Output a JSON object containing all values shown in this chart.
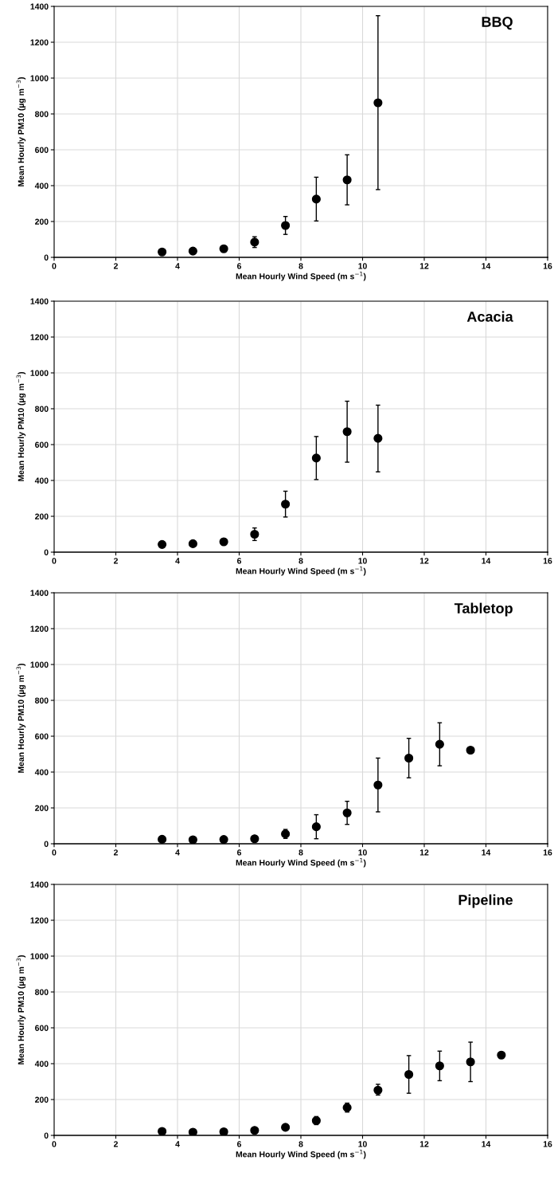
{
  "chart_data": [
    {
      "type": "scatter",
      "title": "BBQ",
      "xlabel": "Mean Hourly Wind Speed (m s$^{−1}$)",
      "ylabel": "Mean Hourly PM10 (µg m$^{−3}$)",
      "xlim": [
        0,
        16
      ],
      "xticks": [
        0,
        2,
        4,
        6,
        8,
        10,
        12,
        14,
        16
      ],
      "ylim": [
        0,
        1400
      ],
      "yticks": [
        0,
        200,
        400,
        600,
        800,
        1000,
        1200,
        1400
      ],
      "grid": true,
      "marker": "circle",
      "series": [
        {
          "color": "#000000",
          "x": [
            3.5,
            4.5,
            5.5,
            6.5,
            7.5,
            8.5,
            9.5,
            10.5
          ],
          "values": [
            30,
            35,
            48,
            85,
            178,
            325,
            432,
            862
          ],
          "errors": [
            null,
            null,
            null,
            [
              55,
              115
            ],
            [
              128,
              228
            ],
            [
              203,
              447
            ],
            [
              293,
              572
            ],
            [
              378,
              1348
            ]
          ]
        }
      ]
    },
    {
      "type": "scatter",
      "title": "Acacia",
      "xlabel": "Mean Hourly Wind Speed (m s$^{−1}$)",
      "ylabel": "Mean Hourly PM10 (µg m$^{−3}$)",
      "xlim": [
        0,
        16
      ],
      "xticks": [
        0,
        2,
        4,
        6,
        8,
        10,
        12,
        14,
        16
      ],
      "ylim": [
        0,
        1400
      ],
      "yticks": [
        0,
        200,
        400,
        600,
        800,
        1000,
        1200,
        1400
      ],
      "grid": true,
      "marker": "circle",
      "series": [
        {
          "color": "#000000",
          "x": [
            3.5,
            4.5,
            5.5,
            6.5,
            7.5,
            8.5,
            9.5,
            10.5
          ],
          "values": [
            43,
            47,
            58,
            100,
            268,
            525,
            672,
            635
          ],
          "errors": [
            null,
            null,
            null,
            [
              65,
              135
            ],
            [
              196,
              340
            ],
            [
              405,
              645
            ],
            [
              502,
              842
            ],
            [
              448,
              820
            ]
          ]
        }
      ]
    },
    {
      "type": "scatter",
      "title": "Tabletop",
      "xlabel": "Mean Hourly Wind Speed (m s$^{−1}$)",
      "ylabel": "Mean Hourly PM10 (µg m$^{−3}$)",
      "xlim": [
        0,
        16
      ],
      "xticks": [
        0,
        2,
        4,
        6,
        8,
        10,
        12,
        14,
        16
      ],
      "ylim": [
        0,
        1400
      ],
      "yticks": [
        0,
        200,
        400,
        600,
        800,
        1000,
        1200,
        1400
      ],
      "grid": true,
      "marker": "circle",
      "series": [
        {
          "color": "#000000",
          "x": [
            3.5,
            4.5,
            5.5,
            6.5,
            7.5,
            8.5,
            9.5,
            10.5,
            11.5,
            12.5,
            13.5
          ],
          "values": [
            25,
            22,
            24,
            28,
            55,
            95,
            172,
            328,
            478,
            555,
            522
          ],
          "errors": [
            null,
            null,
            null,
            null,
            [
              30,
              80
            ],
            [
              28,
              162
            ],
            [
              108,
              237
            ],
            [
              178,
              478
            ],
            [
              368,
              588
            ],
            [
              435,
              675
            ],
            null
          ]
        }
      ]
    },
    {
      "type": "scatter",
      "title": "Pipeline",
      "xlabel": "Mean Hourly Wind Speed (m s$^{−1}$)",
      "ylabel": "Mean Hourly PM10 (µg m$^{−3}$)",
      "xlim": [
        0,
        16
      ],
      "xticks": [
        0,
        2,
        4,
        6,
        8,
        10,
        12,
        14,
        16
      ],
      "ylim": [
        0,
        1400
      ],
      "yticks": [
        0,
        200,
        400,
        600,
        800,
        1000,
        1200,
        1400
      ],
      "grid": true,
      "marker": "circle",
      "series": [
        {
          "color": "#000000",
          "x": [
            3.5,
            4.5,
            5.5,
            6.5,
            7.5,
            8.5,
            9.5,
            10.5,
            11.5,
            12.5,
            13.5,
            14.5
          ],
          "values": [
            22,
            18,
            20,
            28,
            45,
            82,
            155,
            252,
            340,
            388,
            410,
            448
          ],
          "errors": [
            null,
            null,
            null,
            null,
            null,
            [
              60,
              105
            ],
            [
              130,
              180
            ],
            [
              225,
              285
            ],
            [
              235,
              445
            ],
            [
              305,
              470
            ],
            [
              300,
              520
            ],
            null
          ]
        }
      ]
    }
  ]
}
